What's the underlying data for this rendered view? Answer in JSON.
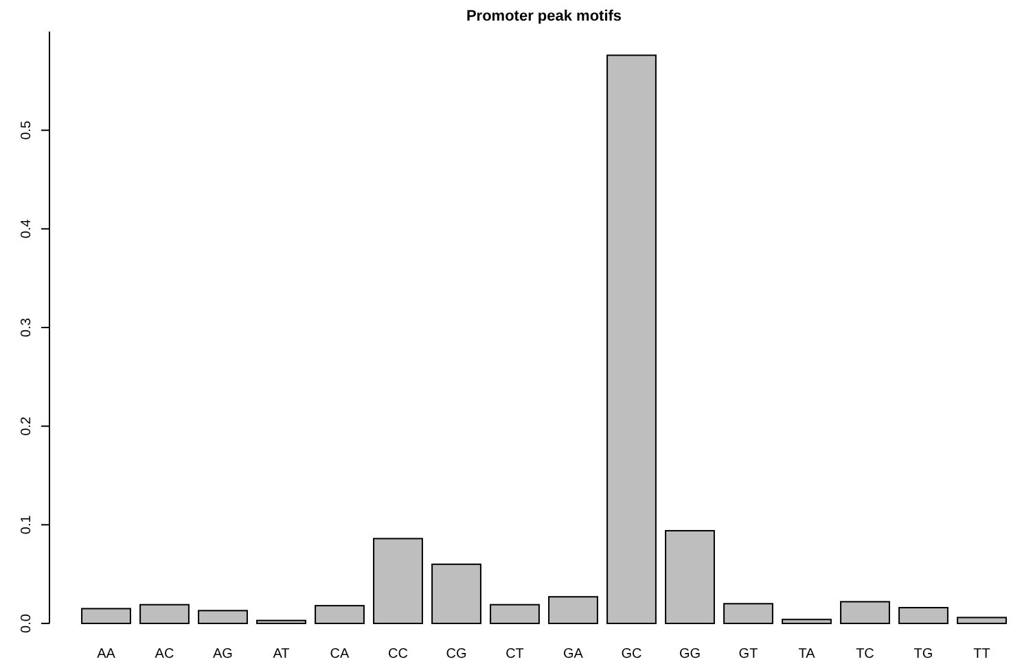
{
  "chart_data": {
    "type": "bar",
    "title": "Promoter peak motifs",
    "categories": [
      "AA",
      "AC",
      "AG",
      "AT",
      "CA",
      "CC",
      "CG",
      "CT",
      "GA",
      "GC",
      "GG",
      "GT",
      "TA",
      "TC",
      "TG",
      "TT"
    ],
    "values": [
      0.015,
      0.019,
      0.013,
      0.003,
      0.018,
      0.086,
      0.06,
      0.019,
      0.027,
      0.576,
      0.094,
      0.02,
      0.004,
      0.022,
      0.016,
      0.006
    ],
    "color": "#bebebe",
    "ylim": [
      0,
      0.6
    ],
    "yticks": [
      {
        "value": 0,
        "label": "0.0"
      },
      {
        "value": 0.1,
        "label": "0.1"
      },
      {
        "value": 0.2,
        "label": "0.2"
      },
      {
        "value": 0.3,
        "label": "0.3"
      },
      {
        "value": 0.4,
        "label": "0.4"
      },
      {
        "value": 0.5,
        "label": "0.5"
      }
    ]
  }
}
